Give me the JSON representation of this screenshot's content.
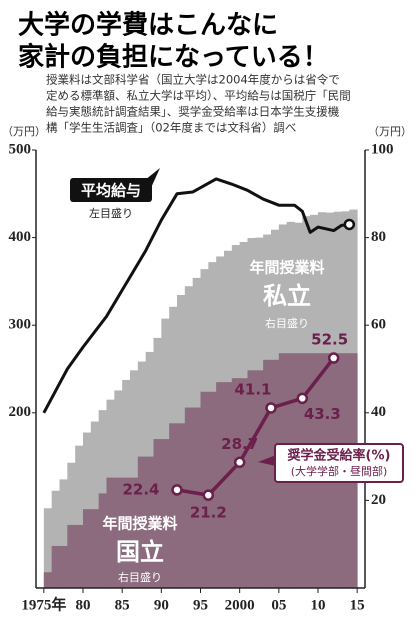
{
  "chart_data": {
    "type": "line",
    "title": [
      "大学の学費はこんなに",
      "家計の負担になっている！"
    ],
    "note": [
      "授業料は文部科学省（国立大学は2004年度からは省令で",
      "定める標準額、私立大学は平均）、平均給与は国税庁「民間",
      "給与実態統計調査結果」、奨学金受給率は日本学生支援機",
      "構「学生生活調査」（02年度までは文科省）調べ"
    ],
    "y_unit": "（万円）",
    "y2_unit": "（万円）",
    "xlim": [
      1974,
      2016
    ],
    "xticks": [
      {
        "value": 1975,
        "label": "1975年"
      },
      {
        "value": 1980,
        "label": "80"
      },
      {
        "value": 1985,
        "label": "85"
      },
      {
        "value": 1990,
        "label": "90"
      },
      {
        "value": 1995,
        "label": "95"
      },
      2000,
      {
        "value": 2005,
        "label": "05"
      },
      {
        "value": 2010,
        "label": "10"
      },
      {
        "value": 2015,
        "label": "15"
      }
    ],
    "ylim": [
      0,
      500
    ],
    "yticks": [
      200,
      300,
      400,
      500
    ],
    "y2lim": [
      0,
      100
    ],
    "y2ticks": [
      20,
      40,
      60,
      80,
      100
    ],
    "series": [
      {
        "name": "私立",
        "heading": "年間授業料",
        "scale_note": "右目盛り",
        "axis": "y2",
        "style": "step",
        "color": "#b3b3b3",
        "x": [
          1975,
          1976,
          1977,
          1978,
          1979,
          1980,
          1981,
          1982,
          1983,
          1984,
          1985,
          1986,
          1987,
          1988,
          1989,
          1990,
          1991,
          1992,
          1993,
          1994,
          1995,
          1996,
          1997,
          1998,
          1999,
          2000,
          2001,
          2002,
          2003,
          2004,
          2005,
          2006,
          2007,
          2008,
          2009,
          2010,
          2011,
          2012,
          2013,
          2014
        ],
        "values": [
          18.2,
          22.2,
          24.8,
          28.6,
          32.5,
          35.5,
          38.0,
          40.6,
          43.0,
          45.1,
          47.5,
          49.7,
          51.7,
          53.9,
          57.1,
          61.5,
          64.2,
          66.9,
          68.9,
          70.8,
          72.8,
          74.4,
          75.7,
          77.0,
          78.3,
          79.0,
          79.9,
          80.0,
          80.7,
          81.8,
          83.0,
          83.6,
          83.4,
          84.9,
          85.2,
          85.8,
          85.7,
          85.9,
          86.0,
          86.4
        ]
      },
      {
        "name": "国立",
        "heading": "年間授業料",
        "scale_note": "右目盛り",
        "axis": "y2",
        "style": "step",
        "color": "#8b6b7d",
        "x": [
          1975,
          1976,
          1977,
          1978,
          1979,
          1980,
          1981,
          1982,
          1983,
          1984,
          1985,
          1986,
          1987,
          1988,
          1989,
          1990,
          1991,
          1992,
          1993,
          1994,
          1995,
          1996,
          1997,
          1998,
          1999,
          2000,
          2001,
          2002,
          2003,
          2004,
          2005,
          2006,
          2007,
          2008,
          2009,
          2010,
          2011,
          2012,
          2013,
          2014
        ],
        "values": [
          3.6,
          9.6,
          9.6,
          14.4,
          14.4,
          18.0,
          18.0,
          21.6,
          25.2,
          25.2,
          25.2,
          25.2,
          30.0,
          30.0,
          34.0,
          34.0,
          37.6,
          37.6,
          41.2,
          41.2,
          44.8,
          44.8,
          47.0,
          47.0,
          47.9,
          47.9,
          49.7,
          49.7,
          52.1,
          52.1,
          53.6,
          53.6,
          53.6,
          53.6,
          53.6,
          53.6,
          53.6,
          53.6,
          53.6,
          53.6
        ]
      },
      {
        "name": "平均給与",
        "scale_note": "左目盛り",
        "axis": "y",
        "style": "line",
        "color": "#111111",
        "x": [
          1975,
          1978,
          1980,
          1983,
          1985,
          1988,
          1990,
          1992,
          1994,
          1997,
          1999,
          2001,
          2003,
          2005,
          2007,
          2008,
          2009,
          2010,
          2012,
          2013,
          2014
        ],
        "values": [
          200,
          250,
          275,
          310,
          340,
          385,
          420,
          450,
          452,
          467,
          461,
          454,
          444,
          437,
          437,
          430,
          406,
          412,
          408,
          414,
          415
        ]
      },
      {
        "name": "奨学金受給率(%)",
        "sub": "(大学学部・昼間部)",
        "axis": "y2",
        "style": "dots",
        "color": "#6b1f4c",
        "x": [
          1992,
          1996,
          2000,
          2004,
          2008,
          2012
        ],
        "values": [
          22.4,
          21.2,
          28.7,
          41.1,
          43.3,
          52.5
        ]
      }
    ]
  }
}
